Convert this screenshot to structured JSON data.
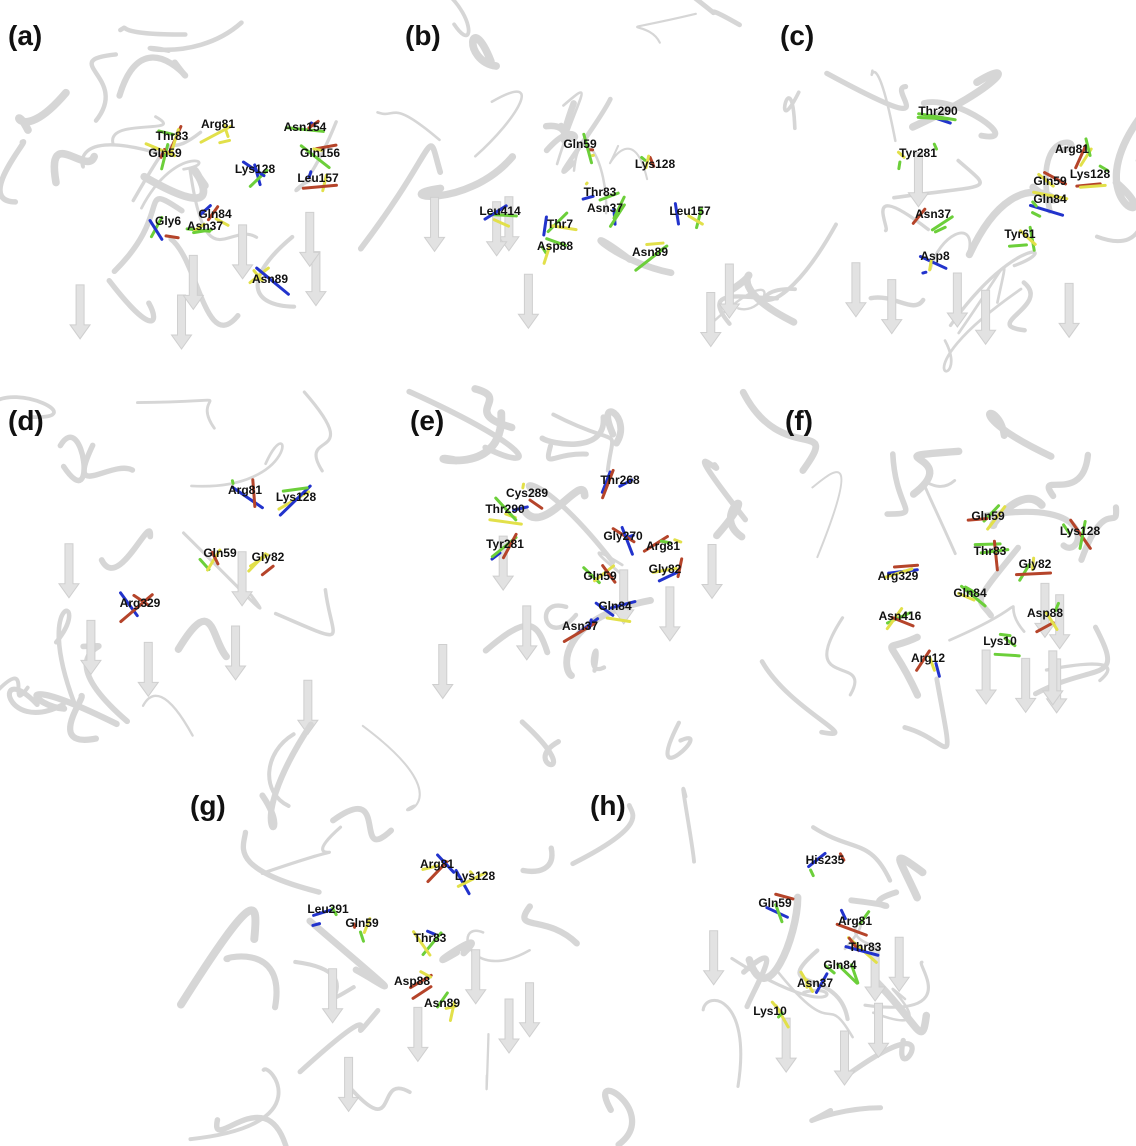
{
  "panels": [
    {
      "label": "(a)",
      "residues": [
        "Arg81",
        "Thr83",
        "Asn154",
        "Gln59",
        "Gln156",
        "Lys128",
        "Leu157",
        "Gln84",
        "Gly6",
        "Asn37",
        "Asn89"
      ]
    },
    {
      "label": "(b)",
      "residues": [
        "Gln59",
        "Lys128",
        "Thr83",
        "Leu414",
        "Asn37",
        "Leu157",
        "Thr7",
        "Asp88",
        "Asn89"
      ]
    },
    {
      "label": "(c)",
      "residues": [
        "Thr290",
        "Tyr281",
        "Arg81",
        "Lys128",
        "Gln59",
        "Gln84",
        "Asn37",
        "Tyr61",
        "Asp8"
      ]
    },
    {
      "label": "(d)",
      "residues": [
        "Arg81",
        "Lys128",
        "Gln59",
        "Gly82",
        "Arg329"
      ]
    },
    {
      "label": "(e)",
      "residues": [
        "Thr268",
        "Cys289",
        "Thr290",
        "Tyr281",
        "Gly270",
        "Arg81",
        "Gly82",
        "Gln59",
        "Gln84",
        "Asn37"
      ]
    },
    {
      "label": "(f)",
      "residues": [
        "Gln59",
        "Lys128",
        "Thr83",
        "Gly82",
        "Arg329",
        "Gln84",
        "Asp88",
        "Asn416",
        "Lys10",
        "Arg12"
      ]
    },
    {
      "label": "(g)",
      "residues": [
        "Arg81",
        "Lys128",
        "Leu291",
        "Gln59",
        "Thr83",
        "Asp88",
        "Asn89"
      ]
    },
    {
      "label": "(h)",
      "residues": [
        "His235",
        "Gln59",
        "Arg81",
        "Thr83",
        "Gln84",
        "Asn37",
        "Lys10"
      ]
    }
  ]
}
